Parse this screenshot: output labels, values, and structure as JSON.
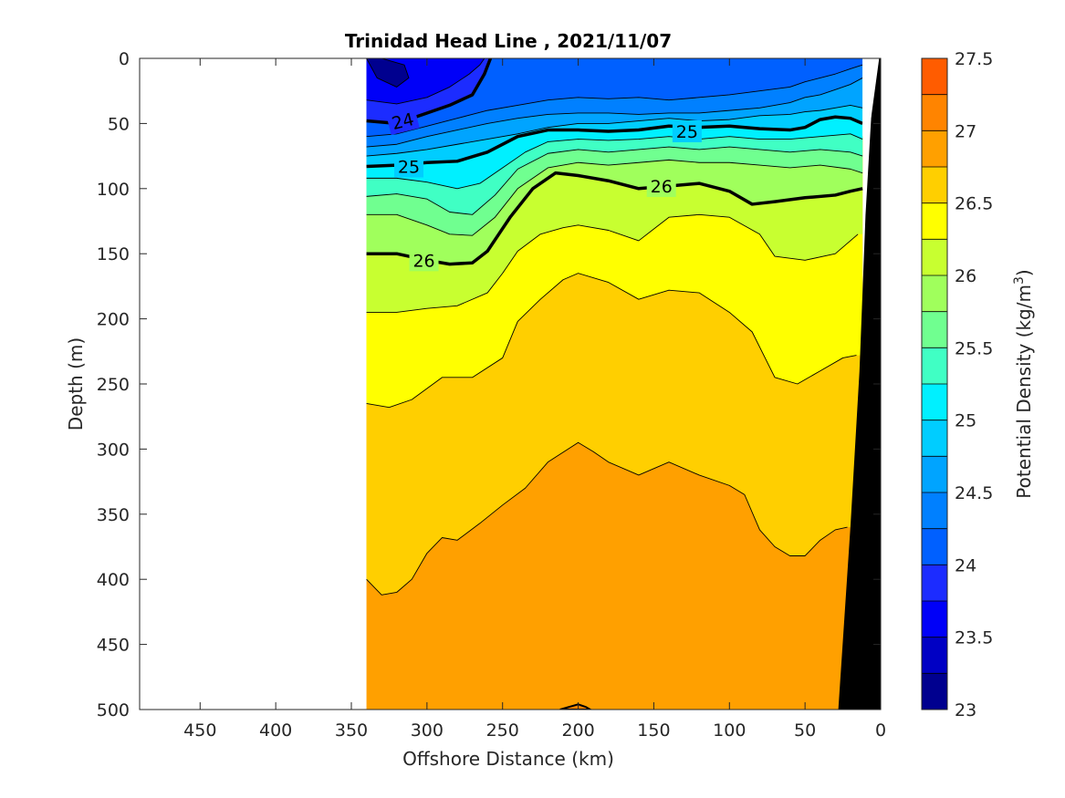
{
  "chart_data": {
    "type": "heatmap",
    "subtype": "filled-contour section",
    "title": "Trinidad Head Line , 2021/11/07",
    "xlabel": "Offshore Distance (km)",
    "ylabel": "Depth (m)",
    "colorbar_label": "Potential Density (kg/m",
    "colorbar_label_sup": "3",
    "colorbar_label_end": ")",
    "xlim": [
      490,
      0
    ],
    "x_reversed": true,
    "ylim": [
      0,
      500
    ],
    "y_reversed": true,
    "x_ticks": [
      450,
      400,
      350,
      300,
      250,
      200,
      150,
      100,
      50,
      0
    ],
    "y_ticks": [
      0,
      50,
      100,
      150,
      200,
      250,
      300,
      350,
      400,
      450,
      500
    ],
    "colorbar_range": [
      23,
      27.5
    ],
    "colorbar_step": 0.25,
    "colorbar_ticks": [
      "23",
      "23.5",
      "24",
      "24.5",
      "25",
      "25.5",
      "26",
      "26.5",
      "27",
      "27.5"
    ],
    "colormap": [
      "#00008f",
      "#0000c4",
      "#0000f8",
      "#1c2cff",
      "#0060ff",
      "#0080ff",
      "#00a4ff",
      "#00cdff",
      "#00f0ff",
      "#40ffc4",
      "#70ff90",
      "#a0ff5c",
      "#c8ff30",
      "#ffff00",
      "#ffcf00",
      "#ffa000",
      "#ff8400",
      "#ff5c00",
      "#ff2400",
      "#e60000",
      "#c00000",
      "#a00000"
    ],
    "data_x_extent": [
      340,
      12
    ],
    "contour_labels": [
      {
        "level": "24",
        "x": 316,
        "y": 48,
        "angle": -14
      },
      {
        "level": "25",
        "x": 128,
        "y": 56,
        "angle": 0
      },
      {
        "level": "25",
        "x": 312,
        "y": 83,
        "angle": 0
      },
      {
        "level": "26",
        "x": 145,
        "y": 98,
        "angle": 0
      },
      {
        "level": "26",
        "x": 302,
        "y": 155,
        "angle": 0
      }
    ],
    "boundaries": [
      {
        "level": 23.25,
        "x": [
          340,
          333,
          320,
          312,
          315,
          330,
          340
        ],
        "y": [
          0,
          15,
          22,
          15,
          5,
          0,
          0
        ]
      },
      {
        "level": 23.75,
        "x": [
          340,
          320,
          300,
          285,
          272,
          265,
          262
        ],
        "y": [
          32,
          35,
          30,
          22,
          12,
          5,
          0
        ]
      },
      {
        "level": 24.0,
        "x": [
          340,
          320,
          300,
          285,
          270,
          262,
          258
        ],
        "y": [
          48,
          50,
          42,
          36,
          28,
          12,
          0
        ]
      },
      {
        "level": 24.25,
        "x": [
          340,
          320,
          300,
          280,
          260,
          240,
          220,
          200,
          180,
          160,
          140,
          120,
          100,
          80,
          60,
          50,
          40,
          30,
          20,
          12
        ],
        "y": [
          60,
          58,
          52,
          46,
          40,
          36,
          32,
          30,
          31,
          30,
          32,
          30,
          28,
          25,
          22,
          18,
          15,
          12,
          8,
          5
        ]
      },
      {
        "level": 24.5,
        "x": [
          340,
          320,
          300,
          280,
          260,
          240,
          220,
          200,
          180,
          160,
          140,
          120,
          100,
          80,
          60,
          50,
          40,
          30,
          20,
          12
        ],
        "y": [
          68,
          66,
          60,
          55,
          50,
          46,
          43,
          42,
          42,
          43,
          42,
          42,
          40,
          38,
          34,
          30,
          28,
          24,
          20,
          15
        ]
      },
      {
        "level": 24.75,
        "x": [
          340,
          320,
          300,
          280,
          260,
          240,
          220,
          200,
          180,
          160,
          140,
          120,
          100,
          80,
          60,
          50,
          40,
          30,
          20,
          12
        ],
        "y": [
          75,
          73,
          70,
          66,
          62,
          58,
          53,
          50,
          50,
          48,
          46,
          48,
          47,
          44,
          43,
          41,
          40,
          38,
          36,
          38
        ]
      },
      {
        "level": 25.0,
        "x": [
          340,
          320,
          300,
          280,
          260,
          240,
          220,
          200,
          180,
          160,
          140,
          120,
          100,
          80,
          60,
          50,
          40,
          30,
          20,
          12
        ],
        "y": [
          83,
          82,
          80,
          79,
          72,
          60,
          55,
          55,
          56,
          55,
          52,
          53,
          52,
          54,
          55,
          53,
          47,
          45,
          46,
          50
        ]
      },
      {
        "level": 25.25,
        "x": [
          340,
          320,
          300,
          280,
          265,
          250,
          235,
          220,
          200,
          180,
          160,
          140,
          120,
          100,
          80,
          60,
          40,
          20,
          12
        ],
        "y": [
          92,
          92,
          95,
          100,
          96,
          84,
          72,
          64,
          62,
          63,
          62,
          60,
          62,
          60,
          62,
          62,
          60,
          58,
          62
        ]
      },
      {
        "level": 25.5,
        "x": [
          340,
          320,
          300,
          285,
          270,
          255,
          240,
          220,
          200,
          180,
          160,
          140,
          120,
          100,
          80,
          60,
          40,
          20,
          12
        ],
        "y": [
          106,
          104,
          108,
          118,
          120,
          105,
          85,
          73,
          70,
          72,
          70,
          68,
          70,
          68,
          70,
          72,
          70,
          72,
          75
        ]
      },
      {
        "level": 25.75,
        "x": [
          340,
          320,
          300,
          285,
          270,
          255,
          240,
          220,
          200,
          180,
          160,
          140,
          120,
          100,
          80,
          60,
          40,
          20,
          12
        ],
        "y": [
          120,
          120,
          128,
          135,
          136,
          122,
          100,
          84,
          80,
          82,
          80,
          78,
          80,
          80,
          82,
          84,
          82,
          85,
          88
        ]
      },
      {
        "level": 26.0,
        "x": [
          340,
          320,
          300,
          285,
          270,
          260,
          245,
          230,
          215,
          200,
          180,
          160,
          140,
          120,
          100,
          85,
          70,
          50,
          30,
          20,
          12
        ],
        "y": [
          150,
          150,
          155,
          158,
          157,
          148,
          122,
          100,
          88,
          90,
          94,
          100,
          98,
          96,
          102,
          112,
          110,
          107,
          105,
          102,
          100
        ]
      },
      {
        "level": 26.25,
        "x": [
          340,
          320,
          300,
          280,
          260,
          250,
          240,
          225,
          210,
          200,
          180,
          160,
          140,
          120,
          100,
          80,
          70,
          50,
          30,
          20,
          15
        ],
        "y": [
          195,
          195,
          192,
          190,
          180,
          165,
          148,
          135,
          130,
          128,
          132,
          140,
          122,
          120,
          122,
          135,
          152,
          155,
          150,
          140,
          135
        ]
      },
      {
        "level": 26.5,
        "x": [
          340,
          325,
          310,
          290,
          270,
          250,
          240,
          225,
          210,
          200,
          180,
          160,
          140,
          120,
          100,
          85,
          70,
          55,
          40,
          25,
          16
        ],
        "y": [
          265,
          268,
          262,
          245,
          245,
          230,
          202,
          185,
          170,
          165,
          172,
          185,
          178,
          180,
          195,
          210,
          245,
          250,
          240,
          230,
          228
        ]
      },
      {
        "level": 26.75,
        "x": [
          340,
          330,
          320,
          310,
          300,
          290,
          280,
          265,
          250,
          235,
          220,
          200,
          190,
          180,
          160,
          150,
          140,
          120,
          100,
          90,
          80,
          70,
          60,
          50,
          40,
          30,
          22
        ],
        "y": [
          400,
          412,
          410,
          400,
          380,
          368,
          370,
          357,
          343,
          330,
          310,
          295,
          302,
          310,
          320,
          315,
          310,
          320,
          328,
          335,
          362,
          375,
          382,
          382,
          370,
          362,
          360
        ]
      }
    ],
    "mask_bottom": {
      "x": [
        28,
        20,
        14,
        10,
        6,
        2,
        0,
        0
      ],
      "y": [
        500,
        360,
        240,
        120,
        40,
        0,
        0,
        500
      ]
    },
    "mask_white": {
      "x": [
        12,
        2,
        0,
        0,
        12
      ],
      "y": [
        0,
        0,
        0,
        0,
        0
      ]
    },
    "small_feature": {
      "level": 27.0,
      "x": [
        212,
        200,
        195,
        192
      ],
      "y": [
        500,
        496,
        498,
        500
      ]
    }
  }
}
